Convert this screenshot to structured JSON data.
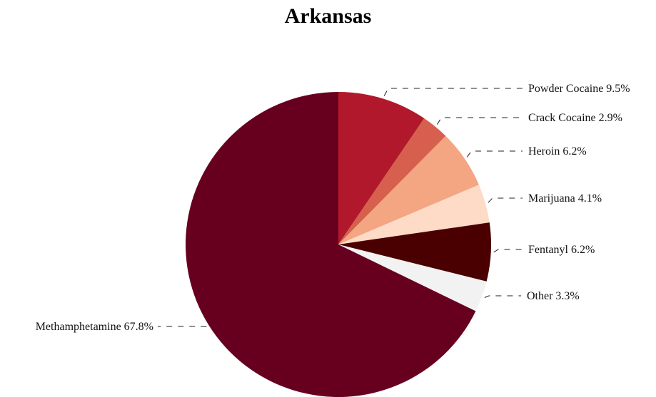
{
  "chart_data": {
    "type": "pie",
    "title": "Arkansas",
    "slices": [
      {
        "label": "Powder Cocaine",
        "value": 9.5,
        "value_label": "9.5%",
        "color": "#b2182b"
      },
      {
        "label": "Crack Cocaine",
        "value": 2.9,
        "value_label": "2.9%",
        "color": "#d6604d"
      },
      {
        "label": "Heroin",
        "value": 6.2,
        "value_label": "6.2%",
        "color": "#f4a582"
      },
      {
        "label": "Marijuana",
        "value": 4.1,
        "value_label": "4.1%",
        "color": "#fddbc7"
      },
      {
        "label": "Fentanyl",
        "value": 6.2,
        "value_label": "6.2%",
        "color": "#4a0000"
      },
      {
        "label": "Other",
        "value": 3.3,
        "value_label": "3.3%",
        "color": "#f2f2f2"
      },
      {
        "label": "Methamphetamine",
        "value": 67.8,
        "value_label": "67.8%",
        "color": "#67001f"
      }
    ],
    "start_angle": "12 o'clock",
    "direction": "clockwise",
    "legend": "none"
  }
}
